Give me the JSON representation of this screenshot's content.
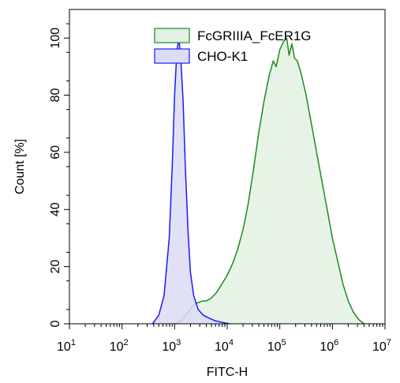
{
  "chart_data": {
    "type": "area",
    "xlabel": "FITC-H",
    "ylabel": "Count [%]",
    "x_scale": "log",
    "xlim": [
      10,
      10000000
    ],
    "ylim": [
      0,
      110
    ],
    "x_ticks": [
      {
        "base": "10",
        "exp": "1"
      },
      {
        "base": "10",
        "exp": "2"
      },
      {
        "base": "10",
        "exp": "3"
      },
      {
        "base": "10",
        "exp": "4"
      },
      {
        "base": "10",
        "exp": "5"
      },
      {
        "base": "10",
        "exp": "6"
      },
      {
        "base": "10",
        "exp": "7"
      }
    ],
    "y_ticks": [
      "0",
      "20",
      "40",
      "60",
      "80",
      "100"
    ],
    "legend_position": "top-right",
    "series": [
      {
        "name": "FcGRIIIA_FcER1G",
        "stroke": "#1f8a1f",
        "fill": "#e3f1e2",
        "points": [
          [
            1000,
            0
          ],
          [
            1300,
            1
          ],
          [
            1800,
            4
          ],
          [
            2400,
            7
          ],
          [
            2900,
            7.5
          ],
          [
            3400,
            8
          ],
          [
            4000,
            8
          ],
          [
            5000,
            9
          ],
          [
            6300,
            11
          ],
          [
            8000,
            14
          ],
          [
            10000,
            17
          ],
          [
            12600,
            21
          ],
          [
            15800,
            26
          ],
          [
            20000,
            33
          ],
          [
            25100,
            42
          ],
          [
            31600,
            54
          ],
          [
            39800,
            67
          ],
          [
            50100,
            78
          ],
          [
            63100,
            87
          ],
          [
            75000,
            92
          ],
          [
            85000,
            90
          ],
          [
            100000,
            96
          ],
          [
            120000,
            99
          ],
          [
            135000,
            100
          ],
          [
            150000,
            94
          ],
          [
            170000,
            98
          ],
          [
            190000,
            93
          ],
          [
            215000,
            92
          ],
          [
            251000,
            88
          ],
          [
            316000,
            80
          ],
          [
            398000,
            70
          ],
          [
            501000,
            60
          ],
          [
            631000,
            50
          ],
          [
            794000,
            40
          ],
          [
            1000000,
            30
          ],
          [
            1260000,
            22
          ],
          [
            1580000,
            14
          ],
          [
            2000000,
            8
          ],
          [
            2510000,
            4
          ],
          [
            3160000,
            1.5
          ],
          [
            3980000,
            0
          ]
        ]
      },
      {
        "name": "CHO-K1",
        "stroke": "#1a1aff",
        "fill": "#dcdcf5",
        "points": [
          [
            380,
            0
          ],
          [
            500,
            3
          ],
          [
            630,
            10
          ],
          [
            790,
            30
          ],
          [
            900,
            55
          ],
          [
            1000,
            80
          ],
          [
            1100,
            95
          ],
          [
            1200,
            100
          ],
          [
            1300,
            94
          ],
          [
            1450,
            78
          ],
          [
            1600,
            55
          ],
          [
            1800,
            32
          ],
          [
            2000,
            18
          ],
          [
            2300,
            10
          ],
          [
            2800,
            5
          ],
          [
            3500,
            3
          ],
          [
            4500,
            2
          ],
          [
            6000,
            1
          ],
          [
            8000,
            0.5
          ],
          [
            11000,
            0
          ]
        ]
      }
    ]
  }
}
